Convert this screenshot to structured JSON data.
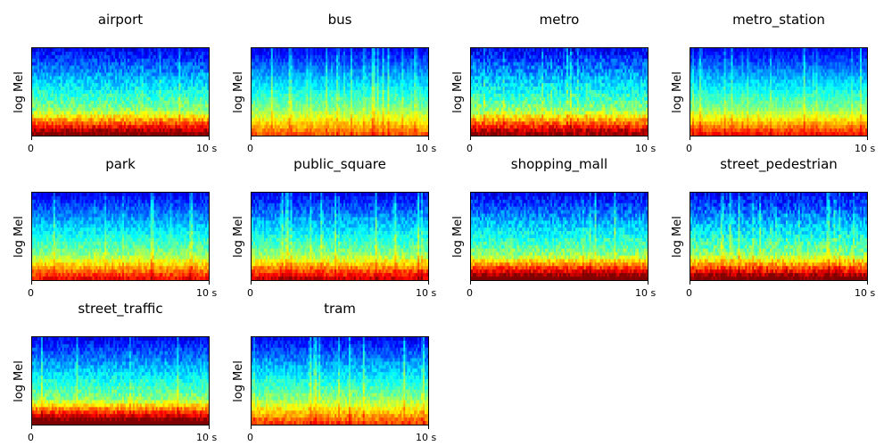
{
  "chart_data": {
    "type": "heatmap",
    "colormap": "jet",
    "grid": false,
    "ylabel": "log Mel",
    "xtick_labels": [
      "0",
      "10 s"
    ],
    "xlim_seconds": [
      0,
      10
    ],
    "panels": [
      {
        "title": "airport"
      },
      {
        "title": "bus"
      },
      {
        "title": "metro"
      },
      {
        "title": "metro_station"
      },
      {
        "title": "park"
      },
      {
        "title": "public_square"
      },
      {
        "title": "shopping_mall"
      },
      {
        "title": "street_pedestrian"
      },
      {
        "title": "street_traffic"
      },
      {
        "title": "tram"
      }
    ]
  }
}
